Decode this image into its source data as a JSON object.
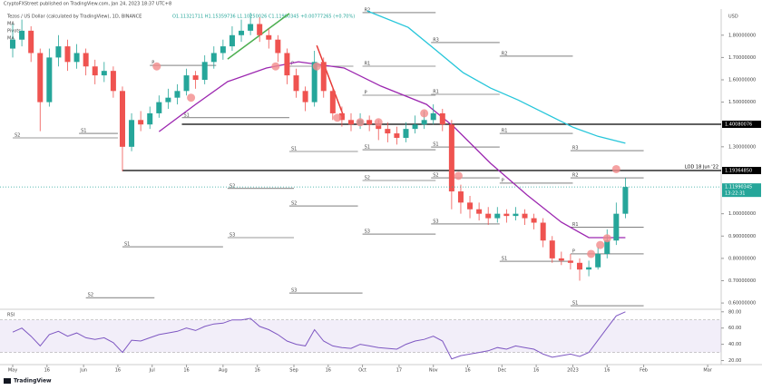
{
  "chart_data": {
    "type": "candlestick",
    "published": "CryptoFXStreet published on TradingView.com, Jan 24, 2023 18:37 UTC+8",
    "title": "Tezos / US Dollar (calculated by TradingView), 1D, BINANCE",
    "ohlc_text": "O1.11321711 H1.15359736 L1.10250026 C1.11990345 +0.00777265 (+0.70%)",
    "indicators": [
      "MA",
      "Pivots",
      "MA"
    ],
    "currency": "USD",
    "rsi_title": "RSI",
    "brand": "TradingView",
    "xlim": [
      -5.56,
      309.9
    ],
    "ylim": [
      0.576,
      1.917
    ],
    "rsi_ylim": [
      15,
      82
    ],
    "xticks": [
      {
        "value": 0,
        "label": "May"
      },
      {
        "value": 15,
        "label": "16"
      },
      {
        "value": 31,
        "label": "Jun"
      },
      {
        "value": 46,
        "label": "16"
      },
      {
        "value": 61,
        "label": "Jul"
      },
      {
        "value": 76,
        "label": "16"
      },
      {
        "value": 92,
        "label": "Aug"
      },
      {
        "value": 107,
        "label": "16"
      },
      {
        "value": 123,
        "label": "Sep"
      },
      {
        "value": 138,
        "label": "16"
      },
      {
        "value": 153,
        "label": "Oct"
      },
      {
        "value": 169,
        "label": "17"
      },
      {
        "value": 184,
        "label": "Nov"
      },
      {
        "value": 199,
        "label": "16"
      },
      {
        "value": 214,
        "label": "Dec"
      },
      {
        "value": 229,
        "label": "16"
      },
      {
        "value": 245,
        "label": "2023"
      },
      {
        "value": 260,
        "label": "16"
      },
      {
        "value": 276,
        "label": "Feb"
      },
      {
        "value": 304,
        "label": "Mar"
      }
    ],
    "yticks": [
      {
        "value": 0.6,
        "label": "0.60000000"
      },
      {
        "value": 0.7,
        "label": "0.70000000"
      },
      {
        "value": 0.8,
        "label": "0.80000000"
      },
      {
        "value": 0.9,
        "label": "0.90000000"
      },
      {
        "value": 1.0,
        "label": "1.00000000"
      },
      {
        "value": 1.3,
        "label": "1.30000000"
      },
      {
        "value": 1.5,
        "label": "1.50000000"
      },
      {
        "value": 1.6,
        "label": "1.60000000"
      },
      {
        "value": 1.7,
        "label": "1.70000000"
      },
      {
        "value": 1.8,
        "label": "1.80000000"
      }
    ],
    "rsi_yticks": [
      {
        "value": 20,
        "label": "20.00"
      },
      {
        "value": 40,
        "label": "40.00"
      },
      {
        "value": 60,
        "label": "60.00"
      },
      {
        "value": 80,
        "label": "80.00"
      }
    ],
    "rsi_band": [
      30,
      70
    ],
    "up_color": "#26a69a",
    "down_color": "#ef5350",
    "candles": {
      "x": [
        0,
        4,
        8,
        12,
        16,
        20,
        24,
        28,
        32,
        36,
        40,
        44,
        48,
        52,
        56,
        60,
        64,
        68,
        72,
        76,
        80,
        84,
        88,
        92,
        96,
        100,
        104,
        108,
        112,
        116,
        120,
        124,
        128,
        132,
        136,
        140,
        144,
        148,
        152,
        156,
        160,
        164,
        168,
        172,
        176,
        180,
        184,
        188,
        192,
        196,
        200,
        204,
        208,
        212,
        216,
        220,
        224,
        228,
        232,
        236,
        240,
        244,
        248,
        252,
        256,
        260,
        264,
        268
      ],
      "ohlc": [
        [
          1.74,
          1.85,
          1.7,
          1.78
        ],
        [
          1.78,
          1.87,
          1.75,
          1.82
        ],
        [
          1.82,
          1.84,
          1.68,
          1.72
        ],
        [
          1.72,
          1.74,
          1.37,
          1.5
        ],
        [
          1.5,
          1.74,
          1.48,
          1.7
        ],
        [
          1.7,
          1.8,
          1.66,
          1.75
        ],
        [
          1.75,
          1.78,
          1.64,
          1.68
        ],
        [
          1.68,
          1.76,
          1.65,
          1.72
        ],
        [
          1.72,
          1.74,
          1.62,
          1.66
        ],
        [
          1.66,
          1.69,
          1.58,
          1.62
        ],
        [
          1.62,
          1.68,
          1.59,
          1.64
        ],
        [
          1.64,
          1.66,
          1.52,
          1.55
        ],
        [
          1.55,
          1.57,
          1.19,
          1.3
        ],
        [
          1.3,
          1.45,
          1.28,
          1.42
        ],
        [
          1.42,
          1.46,
          1.37,
          1.4
        ],
        [
          1.4,
          1.48,
          1.38,
          1.45
        ],
        [
          1.45,
          1.53,
          1.43,
          1.5
        ],
        [
          1.5,
          1.56,
          1.47,
          1.52
        ],
        [
          1.52,
          1.58,
          1.49,
          1.55
        ],
        [
          1.55,
          1.65,
          1.53,
          1.62
        ],
        [
          1.62,
          1.64,
          1.56,
          1.6
        ],
        [
          1.6,
          1.71,
          1.58,
          1.68
        ],
        [
          1.68,
          1.75,
          1.65,
          1.72
        ],
        [
          1.72,
          1.78,
          1.69,
          1.75
        ],
        [
          1.75,
          1.84,
          1.73,
          1.8
        ],
        [
          1.8,
          1.87,
          1.77,
          1.82
        ],
        [
          1.82,
          1.9,
          1.8,
          1.85
        ],
        [
          1.85,
          1.88,
          1.77,
          1.8
        ],
        [
          1.8,
          1.83,
          1.74,
          1.78
        ],
        [
          1.78,
          1.8,
          1.68,
          1.72
        ],
        [
          1.72,
          1.74,
          1.58,
          1.62
        ],
        [
          1.62,
          1.65,
          1.52,
          1.55
        ],
        [
          1.55,
          1.57,
          1.46,
          1.5
        ],
        [
          1.5,
          1.73,
          1.48,
          1.68
        ],
        [
          1.68,
          1.7,
          1.52,
          1.55
        ],
        [
          1.55,
          1.57,
          1.42,
          1.45
        ],
        [
          1.45,
          1.48,
          1.39,
          1.42
        ],
        [
          1.42,
          1.45,
          1.37,
          1.4
        ],
        [
          1.4,
          1.45,
          1.38,
          1.42
        ],
        [
          1.42,
          1.44,
          1.37,
          1.4
        ],
        [
          1.4,
          1.42,
          1.33,
          1.38
        ],
        [
          1.38,
          1.41,
          1.32,
          1.36
        ],
        [
          1.36,
          1.39,
          1.31,
          1.34
        ],
        [
          1.34,
          1.41,
          1.32,
          1.38
        ],
        [
          1.38,
          1.44,
          1.36,
          1.4
        ],
        [
          1.4,
          1.46,
          1.38,
          1.42
        ],
        [
          1.42,
          1.49,
          1.4,
          1.45
        ],
        [
          1.45,
          1.47,
          1.37,
          1.4
        ],
        [
          1.4,
          1.42,
          1.02,
          1.1
        ],
        [
          1.1,
          1.13,
          1.0,
          1.05
        ],
        [
          1.05,
          1.08,
          0.98,
          1.02
        ],
        [
          1.02,
          1.05,
          0.97,
          1.0
        ],
        [
          1.0,
          1.03,
          0.95,
          0.98
        ],
        [
          0.98,
          1.03,
          0.96,
          1.0
        ],
        [
          1.0,
          1.02,
          0.96,
          0.99
        ],
        [
          0.99,
          1.03,
          0.97,
          1.0
        ],
        [
          1.0,
          1.02,
          0.95,
          0.98
        ],
        [
          0.98,
          1.0,
          0.93,
          0.96
        ],
        [
          0.96,
          0.98,
          0.85,
          0.88
        ],
        [
          0.88,
          0.9,
          0.78,
          0.8
        ],
        [
          0.8,
          0.83,
          0.77,
          0.79
        ],
        [
          0.79,
          0.82,
          0.75,
          0.78
        ],
        [
          0.78,
          0.8,
          0.7,
          0.75
        ],
        [
          0.75,
          0.79,
          0.72,
          0.76
        ],
        [
          0.76,
          0.85,
          0.75,
          0.82
        ],
        [
          0.82,
          0.93,
          0.8,
          0.88
        ],
        [
          0.88,
          1.05,
          0.86,
          1.0
        ],
        [
          1.0,
          1.16,
          0.98,
          1.12
        ]
      ],
      "rsi": [
        55,
        60,
        50,
        38,
        52,
        56,
        50,
        54,
        48,
        46,
        48,
        42,
        30,
        45,
        44,
        48,
        52,
        54,
        56,
        60,
        57,
        62,
        65,
        66,
        70,
        70,
        72,
        62,
        58,
        52,
        44,
        40,
        38,
        58,
        44,
        38,
        36,
        35,
        40,
        38,
        36,
        35,
        34,
        40,
        44,
        46,
        50,
        44,
        22,
        26,
        28,
        30,
        32,
        36,
        34,
        38,
        36,
        34,
        28,
        24,
        26,
        28,
        25,
        30,
        45,
        60,
        75,
        80
      ]
    },
    "rsi_color": "#7e57c2",
    "moving_averages": [
      {
        "color": "#9c27b0",
        "x": [
          64,
          80,
          94,
          111,
          125,
          145,
          161,
          181,
          193,
          209,
          225,
          240,
          252,
          268
        ],
        "values": [
          1.368,
          1.49,
          1.592,
          1.653,
          1.681,
          1.653,
          1.572,
          1.49,
          1.389,
          1.226,
          1.084,
          0.962,
          0.893,
          0.893
        ]
      },
      {
        "color": "#26c6da",
        "x": [
          155,
          173,
          185,
          197,
          209,
          221,
          233,
          245,
          256,
          268
        ],
        "values": [
          1.909,
          1.835,
          1.734,
          1.632,
          1.563,
          1.51,
          1.449,
          1.388,
          1.347,
          1.316
        ]
      }
    ],
    "trendlines": [
      {
        "color": "#4caf50",
        "x": [
          94,
          121
        ],
        "values": [
          1.693,
          1.897
        ]
      },
      {
        "color": "#e53935",
        "x": [
          133,
          145
        ],
        "values": [
          1.754,
          1.43
        ]
      }
    ],
    "markers": {
      "color": "#f28b8b",
      "x": [
        63,
        78,
        115,
        133,
        142,
        152,
        160,
        180,
        195,
        253,
        257,
        260,
        264
      ],
      "values": [
        1.66,
        1.52,
        1.66,
        1.66,
        1.43,
        1.41,
        1.41,
        1.45,
        1.17,
        0.82,
        0.86,
        0.89,
        1.2
      ]
    },
    "pivots": [
      {
        "label": "S2",
        "price": 1.34,
        "x": [
          0,
          46
        ]
      },
      {
        "label": "S1",
        "price": 1.36,
        "x": [
          29,
          46
        ]
      },
      {
        "label": "P",
        "price": 1.665,
        "x": [
          60,
          89
        ]
      },
      {
        "label": "S1",
        "price": 1.43,
        "x": [
          74,
          121
        ]
      },
      {
        "label": "S2",
        "price": 1.113,
        "x": [
          94,
          123
        ]
      },
      {
        "label": "S1",
        "price": 0.852,
        "x": [
          48,
          92
        ]
      },
      {
        "label": "S3",
        "price": 0.893,
        "x": [
          94,
          123
        ]
      },
      {
        "label": "S2",
        "price": 0.624,
        "x": [
          32,
          62
        ]
      },
      {
        "label": "P",
        "price": 1.661,
        "x": [
          121,
          149
        ]
      },
      {
        "label": "S1",
        "price": 1.279,
        "x": [
          121,
          151
        ]
      },
      {
        "label": "S2",
        "price": 1.035,
        "x": [
          121,
          151
        ]
      },
      {
        "label": "S3",
        "price": 0.645,
        "x": [
          121,
          153
        ]
      },
      {
        "label": "R2",
        "price": 1.901,
        "x": [
          153,
          185
        ]
      },
      {
        "label": "R1",
        "price": 1.661,
        "x": [
          153,
          185
        ]
      },
      {
        "label": "P",
        "price": 1.531,
        "x": [
          153,
          185
        ]
      },
      {
        "label": "S1",
        "price": 1.287,
        "x": [
          153,
          185
        ]
      },
      {
        "label": "S2",
        "price": 1.149,
        "x": [
          153,
          185
        ]
      },
      {
        "label": "S3",
        "price": 0.909,
        "x": [
          153,
          185
        ]
      },
      {
        "label": "R3",
        "price": 1.767,
        "x": [
          183,
          213
        ]
      },
      {
        "label": "R1",
        "price": 1.535,
        "x": [
          183,
          213
        ]
      },
      {
        "label": "S1",
        "price": 1.299,
        "x": [
          183,
          213
        ]
      },
      {
        "label": "S2",
        "price": 1.161,
        "x": [
          183,
          213
        ]
      },
      {
        "label": "S3",
        "price": 0.954,
        "x": [
          183,
          213
        ]
      },
      {
        "label": "R2",
        "price": 1.706,
        "x": [
          213,
          245
        ]
      },
      {
        "label": "R1",
        "price": 1.36,
        "x": [
          213,
          245
        ]
      },
      {
        "label": "P",
        "price": 1.137,
        "x": [
          213,
          245
        ]
      },
      {
        "label": "S1",
        "price": 0.787,
        "x": [
          213,
          245
        ]
      },
      {
        "label": "R3",
        "price": 1.283,
        "x": [
          244,
          276
        ]
      },
      {
        "label": "R2",
        "price": 1.161,
        "x": [
          244,
          276
        ]
      },
      {
        "label": "R1",
        "price": 0.94,
        "x": [
          244,
          276
        ]
      },
      {
        "label": "P",
        "price": 0.82,
        "x": [
          244,
          276
        ]
      },
      {
        "label": "S1",
        "price": 0.588,
        "x": [
          244,
          276
        ]
      }
    ],
    "levels": [
      {
        "value": 1.40080076,
        "label": "1.40080076",
        "start": 74
      },
      {
        "value": 1.1936485,
        "label": "1.19364850",
        "start": 48,
        "note": "LOD 18 Jun '22"
      }
    ],
    "last": {
      "value": 1.11990345,
      "label": "1.11990345",
      "countdown": "13:22:31",
      "color": "#26a69a"
    }
  }
}
